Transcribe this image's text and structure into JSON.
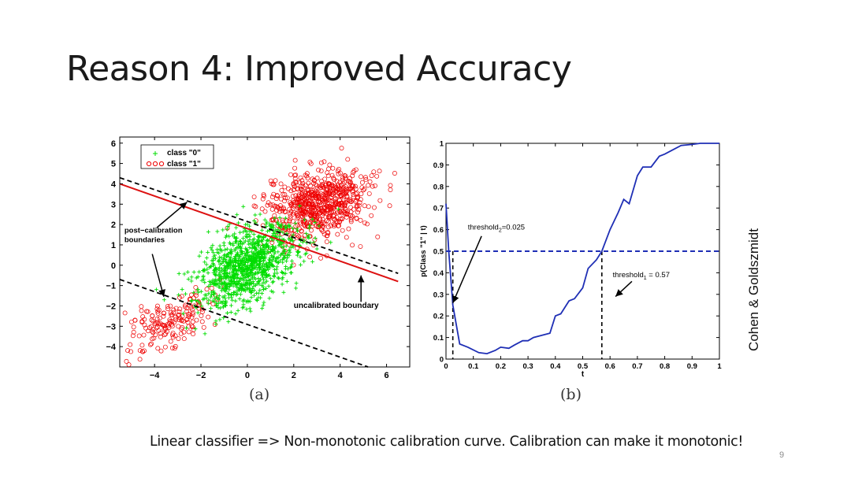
{
  "slide": {
    "title": "Reason 4: Improved Accuracy",
    "side_credit": "Cohen & Goldszmidt",
    "footer_text": "Linear classifier => Non-monotonic calibration curve. Calibration can make it monotonic!",
    "page_number": "9",
    "caption_a": "(a)",
    "caption_b": "(b)"
  },
  "chart_data": [
    {
      "type": "scatter",
      "title": "",
      "xlim": [
        -5.5,
        7
      ],
      "ylim": [
        -5,
        6.3
      ],
      "xticks": [
        -4,
        -2,
        0,
        2,
        4,
        6
      ],
      "yticks": [
        6,
        5,
        4,
        3,
        2,
        1,
        0,
        -1,
        -2,
        -3,
        -4
      ],
      "xtick_labels": [
        "−4",
        "−2",
        "0",
        "2",
        "4",
        "6"
      ],
      "ytick_labels": [
        "6",
        "5",
        "4",
        "3",
        "2",
        "1",
        "0",
        "−1",
        "−2",
        "−3",
        "−4"
      ],
      "legend": {
        "placement": "top-left",
        "entries": [
          "class \"0\"",
          "class \"1\""
        ]
      },
      "series": [
        {
          "name": "class \"0\"",
          "marker": "+",
          "color": "#00dd00",
          "clusters": [
            {
              "center": [
                0,
                0
              ],
              "spread_major": 1.35,
              "spread_minor": 0.7,
              "orientation_deg": 40,
              "count": 1100
            }
          ]
        },
        {
          "name": "class \"1\"",
          "marker": "o",
          "color": "#ee0000",
          "clusters": [
            {
              "center": [
                3,
                3
              ],
              "spread_major": 1.15,
              "spread_minor": 0.8,
              "orientation_deg": 25,
              "count": 700
            },
            {
              "center": [
                -3.3,
                -2.8
              ],
              "spread_major": 1.0,
              "spread_minor": 0.6,
              "orientation_deg": 35,
              "count": 180
            }
          ]
        }
      ],
      "lines": [
        {
          "label": "uncalibrated boundary",
          "style": "solid",
          "color": "#dd1111",
          "points": [
            [
              -5.5,
              4.0
            ],
            [
              6.5,
              -0.8
            ]
          ]
        },
        {
          "label": "post-calibration boundary (upper)",
          "style": "dashed",
          "color": "#000000",
          "points": [
            [
              -5.5,
              4.3
            ],
            [
              6.5,
              -0.4
            ]
          ]
        },
        {
          "label": "post-calibration boundary (lower)",
          "style": "dashed",
          "color": "#000000",
          "points": [
            [
              -5.5,
              -0.7
            ],
            [
              5.2,
              -5.0
            ]
          ]
        }
      ],
      "annotations": [
        {
          "text": "post−calibration\nboundaries",
          "at": [
            -5.3,
            1.6
          ]
        },
        {
          "text": "uncalibrated boundary",
          "at": [
            2.0,
            -2.1
          ]
        }
      ]
    },
    {
      "type": "line",
      "title": "",
      "xlabel": "t",
      "ylabel": "p(Class \"1\" | t)",
      "xlim": [
        0,
        1
      ],
      "ylim": [
        0,
        1
      ],
      "xticks": [
        0,
        0.1,
        0.2,
        0.3,
        0.4,
        0.5,
        0.6,
        0.7,
        0.8,
        0.9,
        1
      ],
      "xtick_labels": [
        "0",
        "0.1",
        "0.2",
        "0.3",
        "0.4",
        "0.5",
        "0.6",
        "0.7",
        "0.8",
        "0.9",
        "1"
      ],
      "yticks": [
        0,
        0.1,
        0.2,
        0.3,
        0.4,
        0.5,
        0.6,
        0.7,
        0.8,
        0.9,
        1
      ],
      "ytick_labels": [
        "0",
        "0.1",
        "0.2",
        "0.3",
        "0.4",
        "0.5",
        "0.6",
        "0.7",
        "0.8",
        "0.9",
        "1"
      ],
      "series": [
        {
          "color": "#1f2fb5",
          "x": [
            0,
            0.01,
            0.025,
            0.05,
            0.08,
            0.12,
            0.15,
            0.18,
            0.2,
            0.23,
            0.25,
            0.28,
            0.3,
            0.32,
            0.35,
            0.38,
            0.4,
            0.42,
            0.45,
            0.47,
            0.5,
            0.52,
            0.55,
            0.57,
            0.6,
            0.63,
            0.65,
            0.67,
            0.7,
            0.72,
            0.75,
            0.78,
            0.8,
            0.83,
            0.86,
            0.9,
            0.93,
            0.95,
            1.0
          ],
          "y": [
            0.72,
            0.5,
            0.25,
            0.07,
            0.055,
            0.03,
            0.025,
            0.04,
            0.055,
            0.05,
            0.065,
            0.085,
            0.085,
            0.1,
            0.11,
            0.12,
            0.2,
            0.21,
            0.27,
            0.28,
            0.33,
            0.42,
            0.46,
            0.5,
            0.6,
            0.68,
            0.74,
            0.72,
            0.85,
            0.89,
            0.89,
            0.94,
            0.95,
            0.97,
            0.99,
            0.995,
            1.0,
            1.0,
            1.0
          ]
        }
      ],
      "threshold_line": {
        "y": 0.5,
        "style": "dashed",
        "color": "#1f2fb5"
      },
      "vertical_markers": [
        {
          "x": 0.025,
          "style": "dashed"
        },
        {
          "x": 0.57,
          "style": "dashed"
        }
      ],
      "annotations": [
        {
          "text": "threshold",
          "subscript": "2",
          "value_text": "=0.025"
        },
        {
          "text": "threshold",
          "subscript": "1",
          "value_text": " = 0.57"
        }
      ]
    }
  ]
}
